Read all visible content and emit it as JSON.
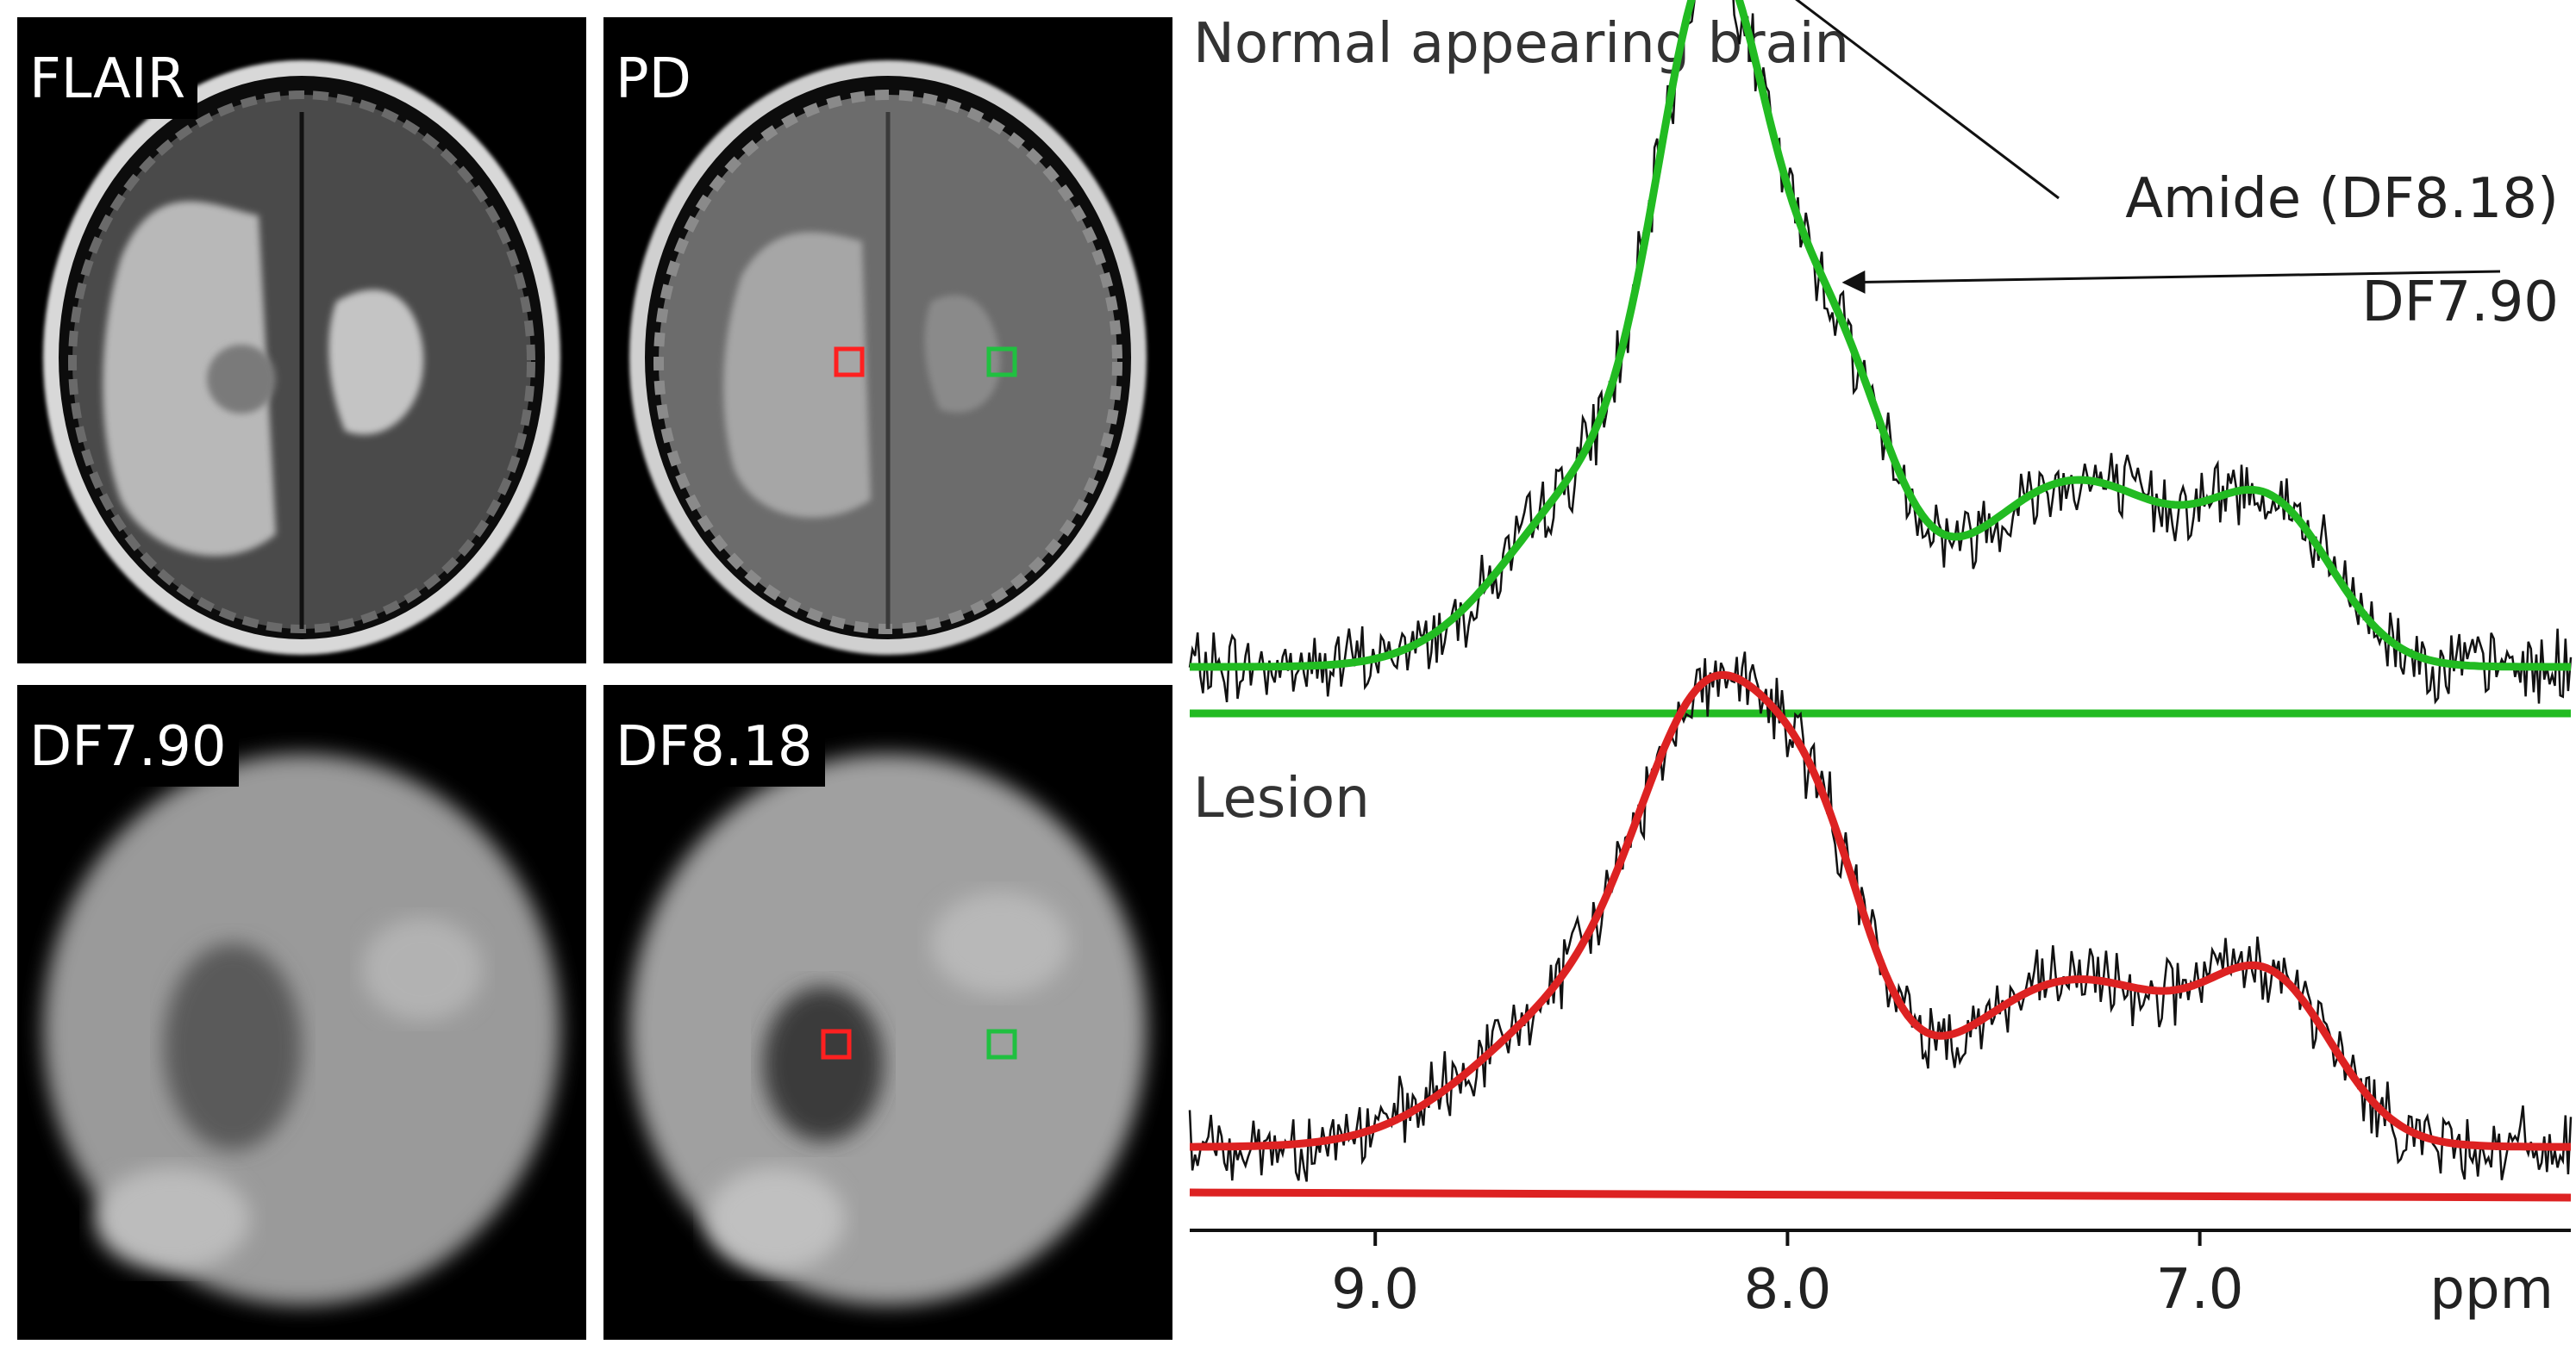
{
  "panels": {
    "flair": {
      "label": "FLAIR"
    },
    "pd": {
      "label": "PD"
    },
    "df790": {
      "label": "DF7.90"
    },
    "df818": {
      "label": "DF8.18"
    }
  },
  "colors": {
    "normal_fit": "#22bb22",
    "lesion_fit": "#dd2222",
    "raw_spectrum": "#111111",
    "roi_lesion": "#ff2020",
    "roi_normal": "#20c040"
  },
  "chart_data": {
    "type": "line",
    "xlabel": "ppm",
    "x_reversed": true,
    "xlim": [
      9.45,
      6.1
    ],
    "xticks": [
      9.0,
      8.0,
      7.0
    ],
    "xtick_labels": [
      "9.0",
      "8.0",
      "7.0"
    ],
    "panels": [
      {
        "title": "Normal appearing brain",
        "annotations": [
          {
            "text": "Amide (DF8.18)",
            "at_ppm": 8.18
          },
          {
            "text": "DF7.90",
            "at_ppm": 7.9
          }
        ],
        "fit_color": "#22bb22",
        "baseline": 0.0,
        "fit_offset": 0.06,
        "peaks": [
          {
            "center": 8.18,
            "amplitude": 0.75,
            "width": 0.13
          },
          {
            "center": 7.9,
            "amplitude": 0.38,
            "width": 0.14
          },
          {
            "center": 8.45,
            "amplitude": 0.24,
            "width": 0.22
          },
          {
            "center": 7.3,
            "amplitude": 0.24,
            "width": 0.27
          },
          {
            "center": 6.82,
            "amplitude": 0.17,
            "width": 0.15
          }
        ]
      },
      {
        "title": "Lesion",
        "fit_color": "#dd2222",
        "baseline": 0.0,
        "fit_offset": 0.06,
        "peaks": [
          {
            "center": 8.18,
            "amplitude": 0.5,
            "width": 0.17
          },
          {
            "center": 7.92,
            "amplitude": 0.28,
            "width": 0.13
          },
          {
            "center": 8.5,
            "amplitude": 0.18,
            "width": 0.25
          },
          {
            "center": 7.3,
            "amplitude": 0.22,
            "width": 0.3
          },
          {
            "center": 6.82,
            "amplitude": 0.17,
            "width": 0.15
          }
        ]
      }
    ]
  }
}
